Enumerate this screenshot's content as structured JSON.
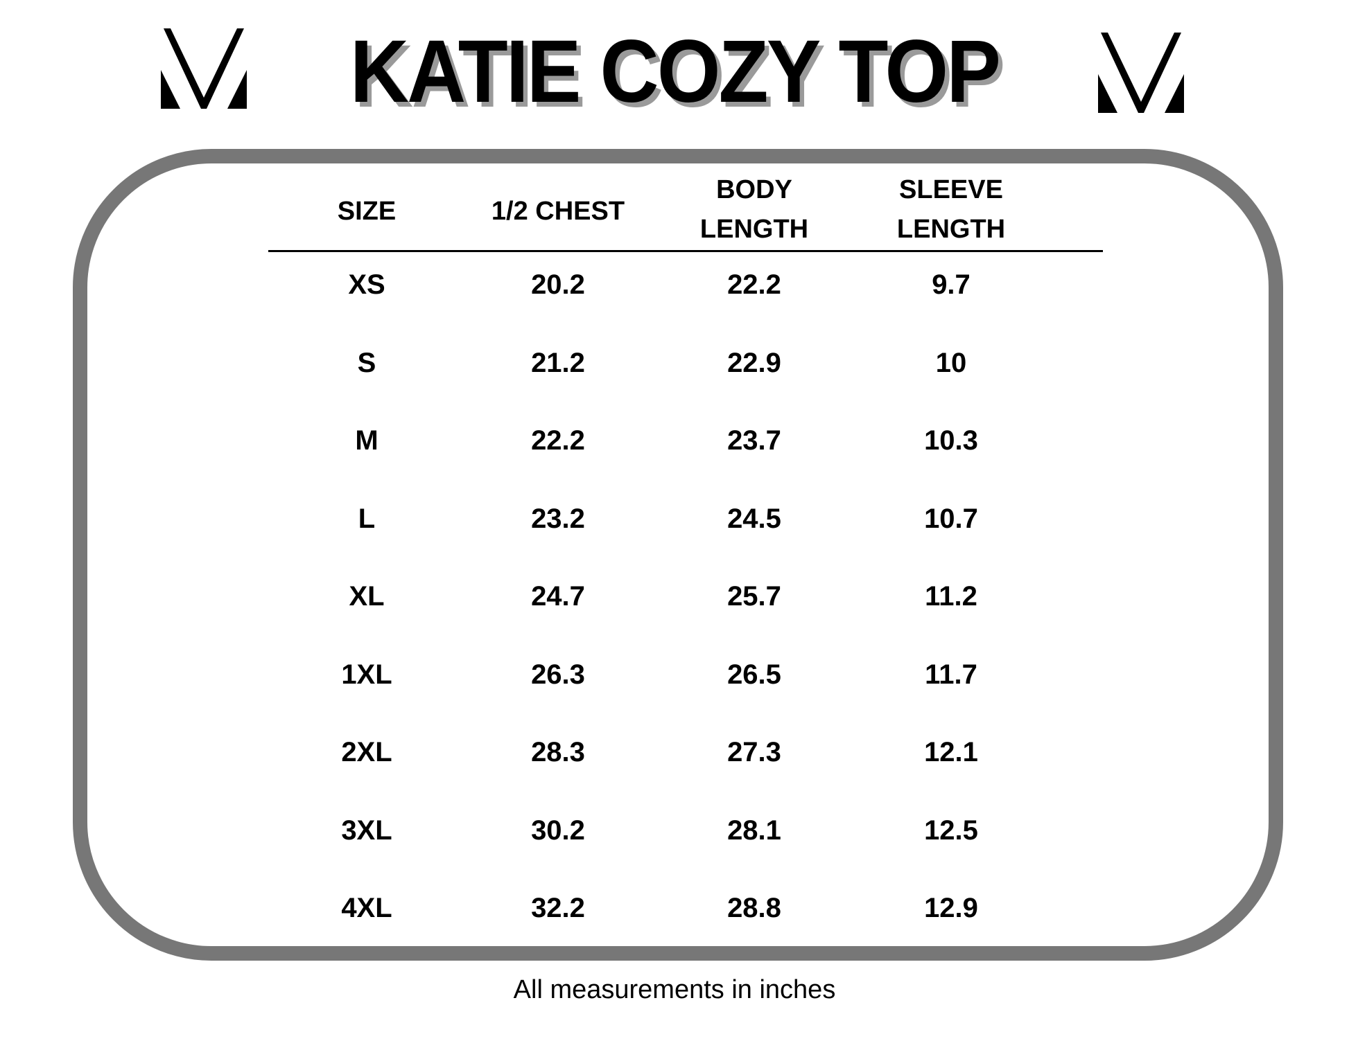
{
  "title": "KATIE COZY TOP",
  "brand_logo": {
    "icon": "v-monogram-logo",
    "color": "#000000"
  },
  "frame_color": "#777777",
  "shadow_color": "#9a9a9a",
  "table": {
    "headers": [
      [
        "SIZE"
      ],
      [
        "1/2 CHEST"
      ],
      [
        "BODY",
        "LENGTH"
      ],
      [
        "SLEEVE",
        "LENGTH"
      ]
    ],
    "rows": [
      [
        "XS",
        "20.2",
        "22.2",
        "9.7"
      ],
      [
        "S",
        "21.2",
        "22.9",
        "10"
      ],
      [
        "M",
        "22.2",
        "23.7",
        "10.3"
      ],
      [
        "L",
        "23.2",
        "24.5",
        "10.7"
      ],
      [
        "XL",
        "24.7",
        "25.7",
        "11.2"
      ],
      [
        "1XL",
        "26.3",
        "26.5",
        "11.7"
      ],
      [
        "2XL",
        "28.3",
        "27.3",
        "12.1"
      ],
      [
        "3XL",
        "30.2",
        "28.1",
        "12.5"
      ],
      [
        "4XL",
        "32.2",
        "28.8",
        "12.9"
      ]
    ]
  },
  "footer": "All measurements in inches"
}
